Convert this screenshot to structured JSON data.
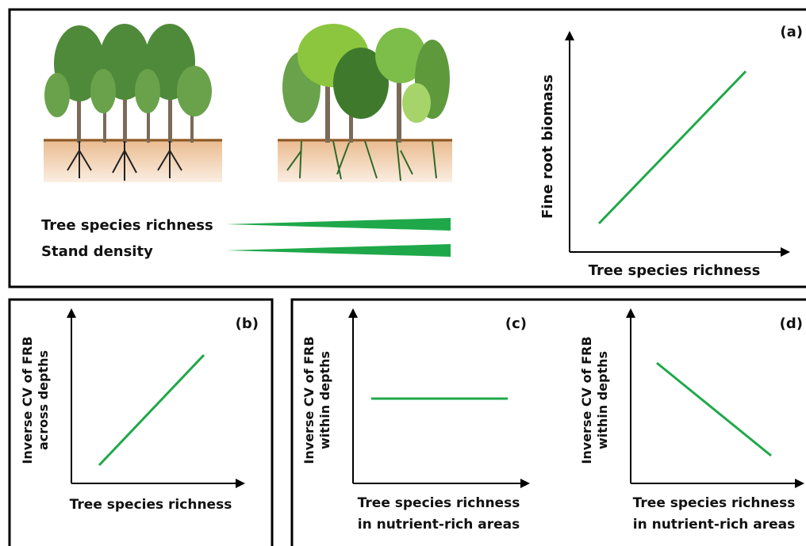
{
  "panel_a": {
    "label": "(a)",
    "gradients": [
      "Tree species richness",
      "Stand density"
    ],
    "y_label": "Fine root biomass",
    "x_label": "Tree species richness"
  },
  "panel_b": {
    "label": "(b)",
    "y_label": [
      "Inverse CV of FRB",
      "across depths"
    ],
    "x_label": [
      "Tree species richness"
    ]
  },
  "panel_c": {
    "label": "(c)",
    "y_label": [
      "Inverse CV of FRB",
      "within depths"
    ],
    "x_label": [
      "Tree species richness",
      "in nutrient-rich areas"
    ]
  },
  "panel_d": {
    "label": "(d)",
    "y_label": [
      "Inverse CV of FRB",
      "within depths"
    ],
    "x_label": [
      "Tree species richness",
      "in nutrient-rich areas"
    ]
  }
}
